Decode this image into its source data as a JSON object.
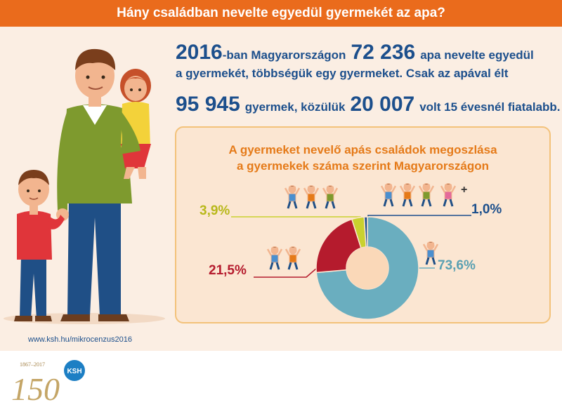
{
  "header": {
    "title": "Hány családban nevelte egyedül gyermekét az apa?"
  },
  "intro": {
    "year": "2016",
    "year_suffix": "-ban Magyarországon",
    "fathers_count": "72 236",
    "line1_tail": "apa nevelte egyedül",
    "line2": "a gyermekét, többségük egy gyermeket. Csak az apával élt",
    "children_count": "95 945",
    "line3_mid": "gyermek, közülük",
    "under15_count": "20 007",
    "line3_tail": "volt 15 évesnél fiatalabb."
  },
  "chart_data": {
    "type": "pie",
    "title_line1": "A gyermeket nevelő apás családok megoszlása",
    "title_line2": "a gyermekek száma szerint Magyarországon",
    "categories": [
      "1 gyermek",
      "2 gyermek",
      "3 gyermek",
      "4 vagy több gyermek"
    ],
    "values": [
      73.6,
      21.5,
      3.9,
      1.0
    ],
    "labels": [
      "73,6%",
      "21,5%",
      "3,9%",
      "1,0%"
    ],
    "colors": [
      "#6aaebf",
      "#b51b2d",
      "#c9d12e",
      "#1c4f8c"
    ],
    "four_plus_mark": "+"
  },
  "footer": {
    "url": "www.ksh.hu/mikrocenzus2016",
    "logo_years": "1867–2017",
    "logo_number": "150",
    "logo_org": "KSH"
  },
  "colors": {
    "header_bg": "#ea6b1c",
    "text_blue": "#1c4f8c",
    "title_orange": "#e57a18",
    "band_bg": "#fbeee3",
    "box_bg": "#fbe6d2",
    "box_border": "#f3c27a"
  }
}
